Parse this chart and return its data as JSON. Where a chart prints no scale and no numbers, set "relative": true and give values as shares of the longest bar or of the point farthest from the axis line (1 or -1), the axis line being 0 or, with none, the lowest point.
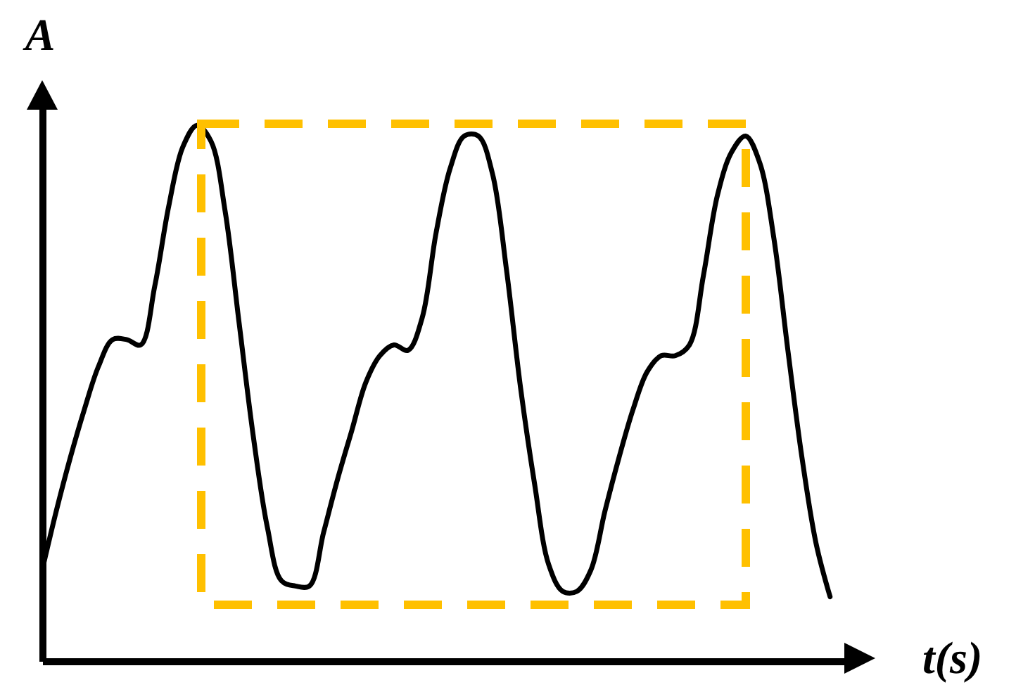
{
  "chart_data": {
    "type": "line",
    "xlabel": "t(s)",
    "ylabel": "A",
    "relative": true,
    "tick_labels": false,
    "line_style": "solid",
    "categories": [
      null,
      null,
      null,
      null,
      null,
      null,
      null,
      null,
      null,
      null,
      null,
      null,
      null,
      null,
      null,
      null,
      null,
      null,
      null,
      null,
      null,
      null,
      null,
      null,
      null,
      null,
      null,
      null,
      null,
      null,
      null,
      null,
      null,
      null,
      null,
      null,
      null,
      null,
      null,
      null,
      null,
      null,
      null,
      null,
      null,
      null,
      null,
      null,
      null,
      null,
      null,
      null,
      null,
      null,
      null,
      null,
      null
    ],
    "series": [
      {
        "color": "#000000",
        "values": [
          0.17,
          0.28,
          0.38,
          0.47,
          0.55,
          0.6,
          0.6,
          0.59,
          0.7,
          0.85,
          0.96,
          1,
          0.97,
          0.84,
          0.63,
          0.42,
          0.25,
          0.15,
          0.14,
          0.14,
          0.24,
          0.34,
          0.43,
          0.52,
          0.57,
          0.59,
          0.58,
          0.64,
          0.8,
          0.92,
          0.98,
          0.98,
          0.91,
          0.73,
          0.51,
          0.33,
          0.18,
          0.13,
          0.13,
          0.17,
          0.28,
          0.38,
          0.47,
          0.54,
          0.57,
          0.57,
          0.59,
          0.72,
          0.87,
          0.95,
          0.98,
          0.93,
          0.79,
          0.58,
          0.38,
          0.22,
          0.12
        ]
      }
    ]
  }
}
